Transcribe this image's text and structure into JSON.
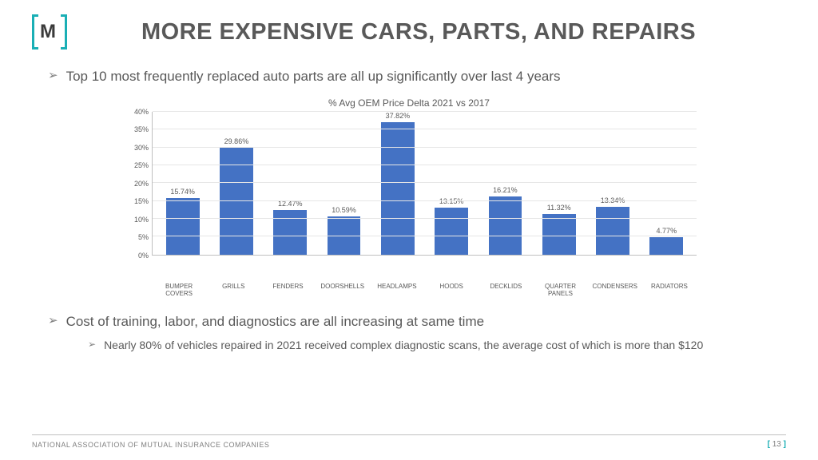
{
  "header": {
    "logo_letter": "M",
    "title": "MORE EXPENSIVE CARS, PARTS, AND REPAIRS"
  },
  "bullets": {
    "b1": "Top 10 most frequently replaced auto parts are all up significantly over last 4 years",
    "b2": "Cost of training, labor, and diagnostics are all increasing at same time",
    "b2_sub": "Nearly 80% of vehicles repaired in 2021 received complex diagnostic scans, the average cost of which is more than $120"
  },
  "chart": {
    "type": "bar",
    "title": "% Avg OEM Price Delta 2021 vs 2017",
    "bar_color": "#4472c4",
    "grid_color": "#e6e6e6",
    "axis_color": "#bfbfbf",
    "label_color": "#595959",
    "ylim_max": 40,
    "ytick_step": 5,
    "yticks": [
      "0%",
      "5%",
      "10%",
      "15%",
      "20%",
      "25%",
      "30%",
      "35%",
      "40%"
    ],
    "categories": [
      "BUMPER COVERS",
      "GRILLS",
      "FENDERS",
      "DOORSHELLS",
      "HEADLAMPS",
      "HOODS",
      "DECKLIDS",
      "QUARTER PANELS",
      "CONDENSERS",
      "RADIATORS"
    ],
    "values": [
      15.74,
      29.86,
      12.47,
      10.59,
      37.82,
      13.15,
      16.21,
      11.32,
      13.34,
      4.77
    ],
    "value_labels": [
      "15.74%",
      "29.86%",
      "12.47%",
      "10.59%",
      "37.82%",
      "13.15%",
      "16.21%",
      "11.32%",
      "13.34%",
      "4.77%"
    ]
  },
  "footer": {
    "org": "NATIONAL ASSOCIATION OF MUTUAL INSURANCE COMPANIES",
    "page": "13"
  },
  "colors": {
    "accent": "#1aafb5",
    "text": "#595959"
  }
}
